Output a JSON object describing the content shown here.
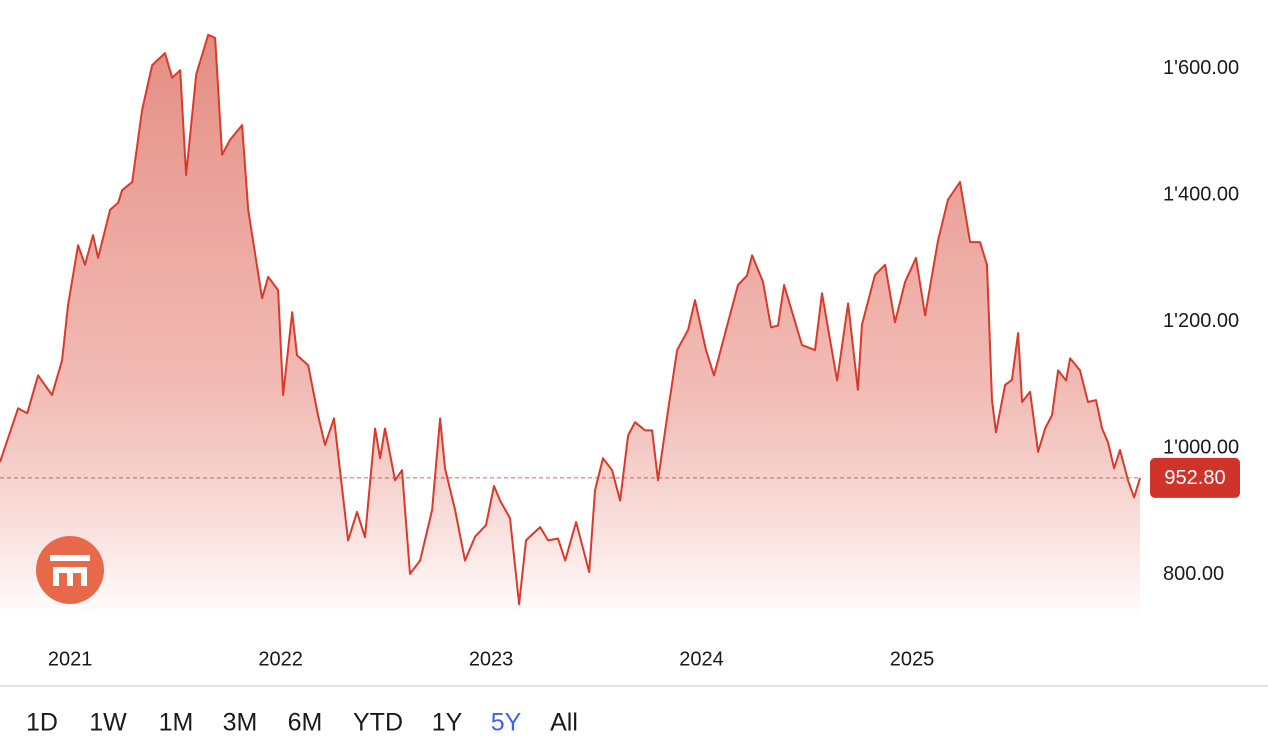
{
  "chart_data": {
    "type": "area",
    "x": [
      2020.667,
      2020.753,
      2020.796,
      2020.848,
      2020.914,
      2020.962,
      2020.99,
      2021.038,
      2021.071,
      2021.109,
      2021.133,
      2021.19,
      2021.228,
      2021.247,
      2021.295,
      2021.342,
      2021.39,
      2021.451,
      2021.485,
      2021.523,
      2021.551,
      2021.599,
      2021.656,
      2021.689,
      2021.722,
      2021.76,
      2021.817,
      2021.846,
      2021.912,
      2021.941,
      2021.988,
      2022.012,
      2022.055,
      2022.078,
      2022.131,
      2022.178,
      2022.211,
      2022.254,
      2022.321,
      2022.363,
      2022.401,
      2022.449,
      2022.473,
      2022.496,
      2022.544,
      2022.577,
      2022.615,
      2022.663,
      2022.72,
      2022.758,
      2022.781,
      2022.829,
      2022.876,
      2022.924,
      2022.976,
      2023.014,
      2023.043,
      2023.09,
      2023.133,
      2023.166,
      2023.233,
      2023.271,
      2023.318,
      2023.352,
      2023.404,
      2023.466,
      2023.494,
      2023.532,
      2023.575,
      2023.613,
      2023.651,
      2023.684,
      2023.732,
      2023.765,
      2023.793,
      2023.841,
      2023.884,
      2023.936,
      2023.969,
      2024.021,
      2024.059,
      2024.116,
      2024.173,
      2024.216,
      2024.24,
      2024.292,
      2024.33,
      2024.363,
      2024.392,
      2024.477,
      2024.539,
      2024.572,
      2024.644,
      2024.696,
      2024.743,
      2024.762,
      2024.824,
      2024.872,
      2024.919,
      2024.967,
      2025.019,
      2025.062,
      2025.124,
      2025.171,
      2025.228,
      2025.276,
      2025.323,
      2025.356,
      2025.38,
      2025.399,
      2025.442,
      2025.475,
      2025.504,
      2025.523,
      2025.561,
      2025.599,
      2025.632,
      2025.665,
      2025.694,
      2025.732,
      2025.751,
      2025.798,
      2025.836,
      2025.874,
      2025.903,
      2025.931,
      2025.96,
      2025.988,
      2026.026,
      2026.055,
      2026.083
    ],
    "values": [
      978,
      1063,
      1055,
      1115,
      1084,
      1139,
      1226,
      1321,
      1290,
      1337,
      1301,
      1377,
      1388,
      1408,
      1421,
      1535,
      1606,
      1625,
      1586,
      1598,
      1432,
      1591,
      1654,
      1649,
      1464,
      1488,
      1511,
      1377,
      1237,
      1271,
      1250,
      1084,
      1215,
      1147,
      1131,
      1052,
      1005,
      1047,
      854,
      899,
      859,
      1031,
      984,
      1031,
      949,
      965,
      801,
      822,
      902,
      1047,
      968,
      902,
      822,
      860,
      878,
      940,
      917,
      889,
      753,
      854,
      875,
      854,
      857,
      822,
      883,
      804,
      933,
      984,
      965,
      917,
      1020,
      1041,
      1028,
      1028,
      949,
      1060,
      1155,
      1187,
      1234,
      1155,
      1115,
      1187,
      1258,
      1273,
      1305,
      1263,
      1191,
      1194,
      1258,
      1163,
      1155,
      1245,
      1107,
      1229,
      1092,
      1195,
      1274,
      1290,
      1199,
      1263,
      1301,
      1210,
      1329,
      1393,
      1421,
      1326,
      1326,
      1290,
      1076,
      1025,
      1100,
      1108,
      1182,
      1073,
      1089,
      994,
      1031,
      1052,
      1123,
      1107,
      1142,
      1123,
      1073,
      1076,
      1031,
      1009,
      968,
      997,
      949,
      922,
      952.8
    ],
    "color": "#d93a2b",
    "xlim": [
      2020.667,
      2026.083
    ],
    "xticks": [
      2021,
      2022,
      2023,
      2024,
      2025
    ],
    "ylim": [
      728,
      1709
    ],
    "yticks": [
      {
        "value": 800,
        "label": "800.00"
      },
      {
        "value": 1000,
        "label": "1'000.00"
      },
      {
        "value": 1200,
        "label": "1'200.00"
      },
      {
        "value": 1400,
        "label": "1'400.00"
      },
      {
        "value": 1600,
        "label": "1'600.00"
      }
    ],
    "grid": false,
    "last_price": {
      "value": 952.8,
      "label": "952.80"
    },
    "range_buttons": [
      "1D",
      "1W",
      "1M",
      "3M",
      "6M",
      "YTD",
      "1Y",
      "5Y",
      "All"
    ],
    "selected_range": "5Y"
  }
}
